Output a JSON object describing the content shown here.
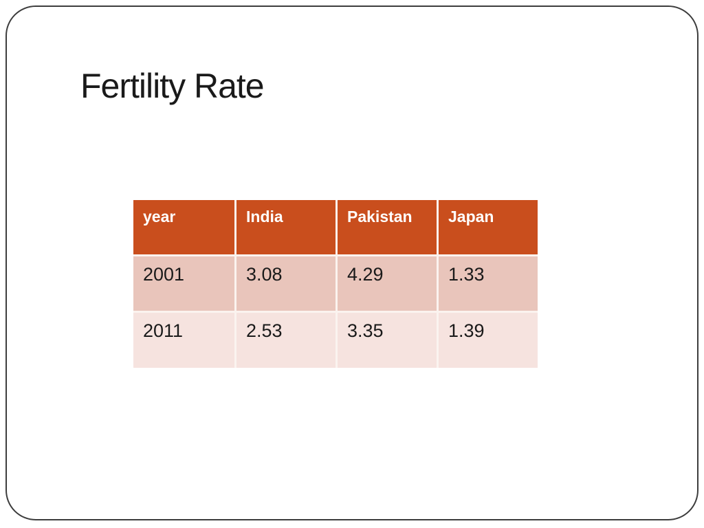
{
  "slide": {
    "title": "Fertility Rate"
  },
  "table": {
    "columns": [
      "year",
      "India",
      "Pakistan",
      "Japan"
    ],
    "rows": [
      [
        "2001",
        "3.08",
        "4.29",
        "1.33"
      ],
      [
        "2011",
        "2.53",
        "3.35",
        "1.39"
      ]
    ]
  },
  "colors": {
    "header_bg": "#c94e1d",
    "row_2001_bg": "#e9c5bb",
    "row_2011_bg": "#f6e3df",
    "cell_divider": "#fbf3ef",
    "header_text": "#ffffff",
    "body_text": "#1a1a1a",
    "slide_border": "#3c3c3c",
    "page_bg": "#ffffff"
  },
  "chart_data": {
    "type": "table",
    "title": "Fertility Rate",
    "columns": [
      "year",
      "India",
      "Pakistan",
      "Japan"
    ],
    "rows": [
      [
        "2001",
        3.08,
        4.29,
        1.33
      ],
      [
        "2011",
        2.53,
        3.35,
        1.39
      ]
    ]
  }
}
